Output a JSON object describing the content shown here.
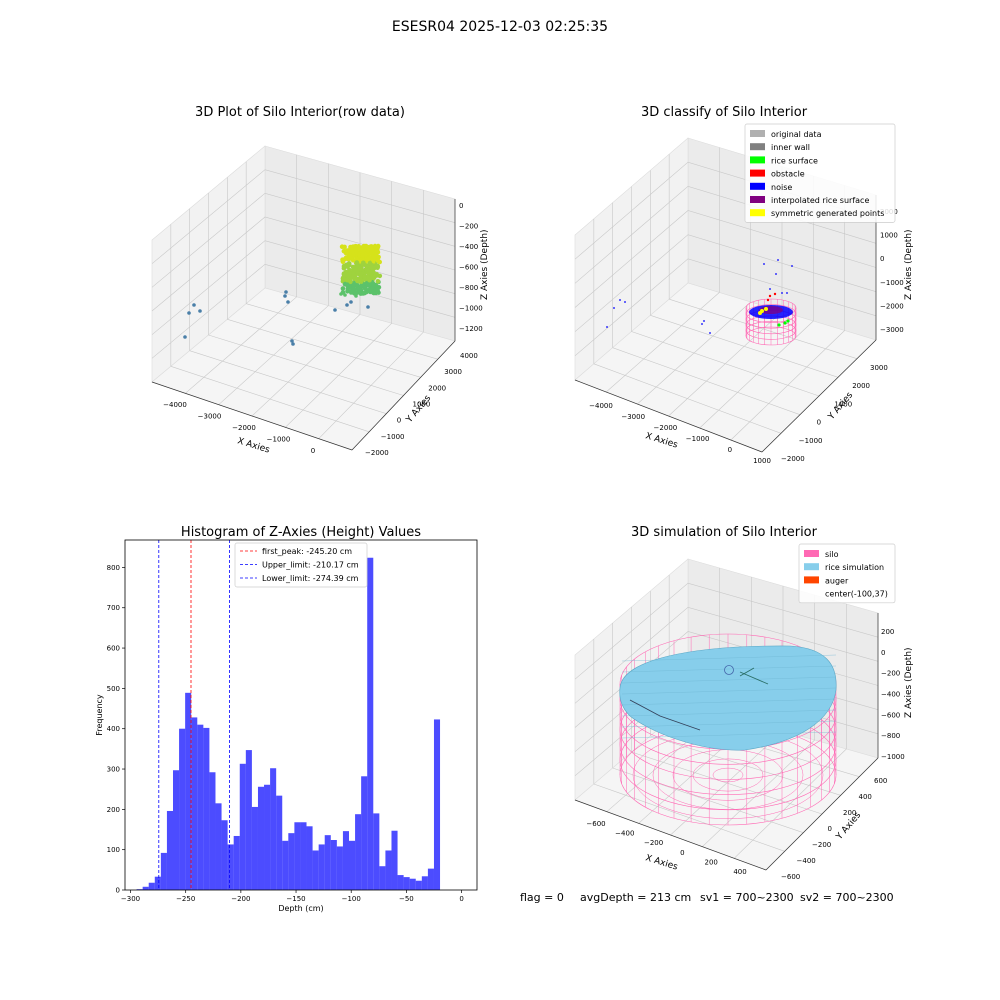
{
  "figure": {
    "suptitle": "ESESR04 2025-12-03 02:25:35",
    "status": {
      "flag": "flag = 0",
      "avg_depth": "avgDepth = 213 cm",
      "sv1": "sv1 = 700~2300",
      "sv2": "sv2 = 700~2300"
    }
  },
  "chart_data": [
    {
      "type": "scatter",
      "projection": "3d",
      "title": "3D Plot of Silo Interior(row data)",
      "xlabel": "X Axies",
      "ylabel": "Y Axies",
      "zlabel": "Z Axies (Depth)",
      "x_ticks": [
        "−4000",
        "−3000",
        "−2000",
        "−1000",
        "0"
      ],
      "y_ticks": [
        "−2000",
        "−1000",
        "0",
        "1000",
        "2000",
        "3000",
        "4000"
      ],
      "z_ticks": [
        "0",
        "−200",
        "−400",
        "−600",
        "−800",
        "−1000",
        "−1200"
      ],
      "colormap": "viridis (blue to yellow by depth)",
      "grid": true,
      "outliers_color": "#4a7fa8",
      "cluster_colors": [
        "#d6e21a",
        "#9fd33e",
        "#5cc26a"
      ]
    },
    {
      "type": "scatter",
      "projection": "3d",
      "title": "3D classify of Silo Interior",
      "xlabel": "X Axies",
      "ylabel": "Y Axies",
      "zlabel": "Z Axies (Depth)",
      "x_ticks": [
        "−4000",
        "−3000",
        "−2000",
        "−1000",
        "0",
        "1000"
      ],
      "y_ticks": [
        "−2000",
        "−1000",
        "0",
        "1000",
        "2000",
        "3000"
      ],
      "z_ticks": [
        "2000",
        "1000",
        "0",
        "−1000",
        "−2000",
        "−3000"
      ],
      "grid": true,
      "legend_position": "top-right",
      "legend": [
        {
          "label": "original data",
          "color": "#b0b0b0"
        },
        {
          "label": "inner wall",
          "color": "#808080"
        },
        {
          "label": "rice surface",
          "color": "#00ff00"
        },
        {
          "label": "obstacle",
          "color": "#ff0000"
        },
        {
          "label": "noise",
          "color": "#0000ff"
        },
        {
          "label": "interpolated rice surface",
          "color": "#800080"
        },
        {
          "label": "symmetric generated points",
          "color": "#ffff00"
        }
      ]
    },
    {
      "type": "bar",
      "title": "Histogram of Z-Axies (Height) Values",
      "xlabel": "Depth (cm)",
      "ylabel": "Frequency",
      "xlim": [
        -305,
        14
      ],
      "ylim": [
        0,
        868
      ],
      "x_ticks": [
        -300,
        -250,
        -200,
        -150,
        -100,
        -50,
        0
      ],
      "y_ticks": [
        0,
        100,
        200,
        300,
        400,
        500,
        600,
        700,
        800
      ],
      "bar_color": "#0000ff",
      "bar_alpha": 0.7,
      "bin_start": -300,
      "bin_width": 5.5,
      "values": [
        0,
        2,
        8,
        18,
        33,
        92,
        196,
        297,
        400,
        489,
        428,
        410,
        402,
        292,
        215,
        173,
        113,
        134,
        313,
        347,
        206,
        256,
        261,
        302,
        234,
        122,
        141,
        168,
        168,
        158,
        98,
        113,
        136,
        124,
        108,
        146,
        122,
        188,
        282,
        824,
        190,
        59,
        98,
        147,
        37,
        32,
        28,
        23,
        34,
        53,
        423
      ],
      "vlines": [
        {
          "label": "first_peak: -245.20 cm",
          "x": -245.2,
          "color": "#ff0000"
        },
        {
          "label": "Upper_limit: -210.17 cm",
          "x": -210.17,
          "color": "#0000ff"
        },
        {
          "label": "Lower_limit: -274.39 cm",
          "x": -274.39,
          "color": "#0000ff"
        }
      ],
      "grid": false,
      "legend_position": "top-right"
    },
    {
      "type": "surface",
      "projection": "3d",
      "title": "3D simulation of Silo Interior",
      "xlabel": "X Axies",
      "ylabel": "Y Axies",
      "zlabel": "Z Axies (Depth)",
      "x_ticks": [
        "−600",
        "−400",
        "−200",
        "0",
        "200",
        "400"
      ],
      "y_ticks": [
        "−600",
        "−400",
        "−200",
        "0",
        "200",
        "400",
        "600"
      ],
      "z_ticks": [
        "200",
        "0",
        "−200",
        "−400",
        "−600",
        "−800",
        "−1000"
      ],
      "grid": true,
      "legend_position": "top-right",
      "legend": [
        {
          "label": "silo",
          "color": "#ff69b4"
        },
        {
          "label": "rice simulation",
          "color": "#87ceeb"
        },
        {
          "label": "auger",
          "color": "#ff4500"
        },
        {
          "label": "center(-100,37)",
          "color": ""
        }
      ]
    }
  ]
}
